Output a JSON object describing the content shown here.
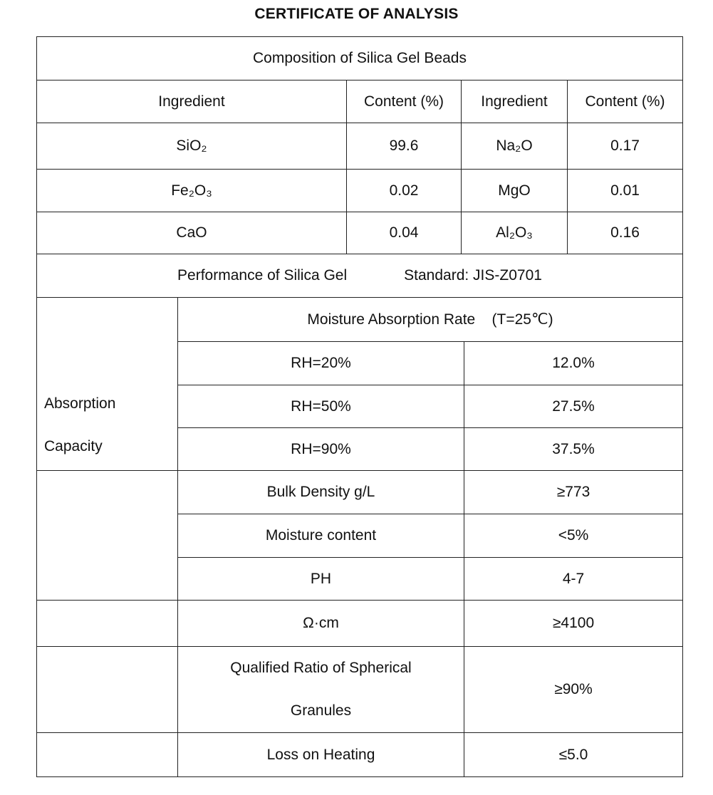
{
  "title": "CERTIFICATE OF ANALYSIS",
  "composition": {
    "heading": "Composition of Silica Gel Beads",
    "headers": [
      "Ingredient",
      "Content (%)",
      "Ingredient",
      "Content (%)"
    ],
    "rows": [
      [
        "SiO₂",
        "99.6",
        "Na₂O",
        "0.17"
      ],
      [
        "Fe₂O₃",
        "0.02",
        "MgO",
        "0.01"
      ],
      [
        "CaO",
        "0.04",
        "Al₂O₃",
        "0.16"
      ]
    ]
  },
  "performance": {
    "heading": "Performance of Silica Gel",
    "standard": "Standard: JIS-Z0701",
    "absorption_label_1": "Absorption",
    "absorption_label_2": "Capacity",
    "moisture_heading": "Moisture Absorption Rate    (T=25℃)",
    "absorption_rows": [
      [
        "RH=20%",
        "12.0%"
      ],
      [
        "RH=50%",
        "27.5%"
      ],
      [
        "RH=90%",
        "37.5%"
      ]
    ],
    "rows": [
      [
        "Bulk Density g/L",
        "≥773"
      ],
      [
        "Moisture content",
        "<5%"
      ],
      [
        "PH",
        "4-7"
      ],
      [
        "Ω·cm",
        "≥4100"
      ],
      [
        "Qualified Ratio of Spherical",
        "≥90%",
        "Granules"
      ],
      [
        "Loss on Heating",
        "≤5.0"
      ]
    ]
  }
}
